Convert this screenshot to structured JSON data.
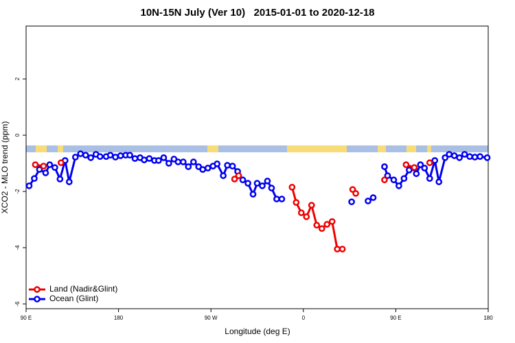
{
  "chart_data": {
    "type": "line",
    "title": "10N-15N July (Ver 10)   2015-01-01 to 2020-12-18",
    "xlabel": "Longitude (deg E)",
    "ylabel": "XCO2 - MLO trend (ppm)",
    "xlim": [
      90,
      540
    ],
    "ylim": [
      -6.17,
      3.88
    ],
    "xticks": [
      {
        "value": 90,
        "label": "90 E"
      },
      180,
      {
        "value": 270,
        "label": "90 W"
      },
      {
        "value": 360,
        "label": "0"
      },
      {
        "value": 450,
        "label": "90 E"
      },
      {
        "value": 540,
        "label": "180"
      }
    ],
    "yticks": [
      2,
      0,
      -2,
      -4,
      -6
    ],
    "legend": "bottom-left",
    "series": [
      {
        "name": "Ocean (Glint)",
        "color": "#0000ee",
        "x": [
          93,
          98,
          103,
          109,
          113,
          118,
          123,
          128,
          132,
          138,
          143,
          148,
          153,
          158,
          162,
          168,
          172,
          177,
          182,
          187,
          191,
          196,
          201,
          205,
          210,
          215,
          219,
          224,
          229,
          234,
          238,
          243,
          248,
          253,
          258,
          262,
          267,
          272,
          276,
          282,
          286,
          291,
          296,
          301,
          306,
          311,
          315,
          320,
          325,
          329,
          334,
          339,
          370,
          407,
          415,
          423,
          428,
          435,
          439,
          442,
          448,
          453,
          458,
          463,
          468,
          470,
          474,
          478,
          483,
          488,
          492,
          498,
          502,
          507,
          512,
          517,
          522,
          527,
          532,
          539
        ],
        "values": [
          -1.8,
          -1.54,
          -1.22,
          -1.34,
          -1.05,
          -1.15,
          -1.56,
          -0.9,
          -1.66,
          -0.78,
          -0.66,
          -0.71,
          -0.8,
          -0.68,
          -0.76,
          -0.76,
          -0.71,
          -0.78,
          -0.73,
          -0.71,
          -0.71,
          -0.83,
          -0.8,
          -0.88,
          -0.83,
          -0.9,
          -0.9,
          -0.8,
          -1.0,
          -0.85,
          -0.95,
          -0.95,
          -1.12,
          -0.95,
          -1.12,
          -1.22,
          -1.17,
          -1.1,
          -1.02,
          -1.44,
          -1.07,
          -1.1,
          -1.29,
          -1.59,
          -1.71,
          -2.1,
          -1.71,
          -1.8,
          -1.63,
          -1.88,
          -2.27,
          -2.27,
          null,
          -2.37,
          null,
          -2.34,
          -2.22,
          null,
          -1.12,
          -1.44,
          -1.59,
          -1.8,
          -1.54,
          -1.24,
          -1.17,
          -1.37,
          -1.05,
          -1.17,
          -1.54,
          -0.9,
          -1.66,
          -0.8,
          -0.68,
          -0.73,
          -0.8,
          -0.68,
          -0.76,
          -0.78,
          -0.76,
          -0.8
        ]
      },
      {
        "name": "Land (Nadir&Glint)",
        "color": "#ee0000",
        "x": [
          99,
          107,
          115,
          124,
          200,
          293,
          297,
          320,
          349,
          353,
          358,
          363,
          368,
          373,
          378,
          383,
          388,
          393,
          398,
          403,
          408,
          411,
          425,
          439,
          450,
          460,
          468,
          475,
          483
        ],
        "values": [
          -1.05,
          -1.1,
          null,
          -0.98,
          null,
          -1.56,
          -1.44,
          null,
          -1.85,
          -2.39,
          -2.76,
          -2.9,
          -2.49,
          -3.2,
          -3.32,
          -3.17,
          -3.07,
          -4.05,
          -4.05,
          null,
          -1.93,
          -2.07,
          null,
          -1.59,
          null,
          -1.05,
          -1.15,
          null,
          -0.98
        ]
      }
    ]
  }
}
